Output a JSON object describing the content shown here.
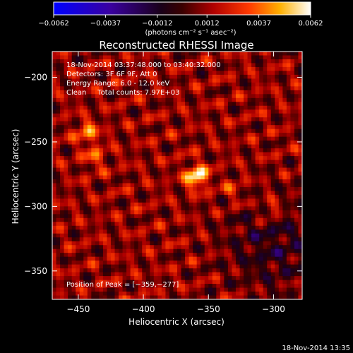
{
  "chart_data": {
    "type": "heatmap",
    "title": "Reconstructed RHESSI Image",
    "xlabel": "Heliocentric X (arcsec)",
    "ylabel": "Heliocentric Y (arcsec)",
    "xlim": [
      -470,
      -278
    ],
    "ylim": [
      -372,
      -180
    ],
    "x_ticks": [
      -450,
      -400,
      -350,
      -300
    ],
    "y_ticks": [
      -200,
      -250,
      -300,
      -350
    ],
    "x_tick_labels": [
      "−450",
      "−400",
      "−350",
      "−300"
    ],
    "y_tick_labels": [
      "−200",
      "−250",
      "−300",
      "−350"
    ],
    "grid": false,
    "colorbar": {
      "min": -0.0062,
      "max": 0.0062,
      "ticks": [
        -0.0062,
        -0.0037,
        -0.0012,
        0.0012,
        0.0037,
        0.0062
      ],
      "tick_labels": [
        "−0.0062",
        "−0.0037",
        "−0.0012",
        "0.0012",
        "0.0037",
        "0.0062"
      ],
      "unit_label": "(photons cm⁻² s⁻¹ asec⁻²)"
    },
    "annotations": [
      "18-Nov-2014 03:37:48.000 to 03:40:32.000",
      "Detectors: 3F 6F 9F, Att 0",
      "Energy Range: 6.0 - 12.0 keV",
      "Clean     Total counts: 7.97E+03"
    ],
    "peak": {
      "x": -359,
      "y": -277
    },
    "peak_label": "Position of Peak = [−359,−277]",
    "bright_sources": [
      {
        "x": -359,
        "y": -277,
        "value": 0.0062
      },
      {
        "x": -443,
        "y": -243,
        "value": 0.004
      },
      {
        "x": -437,
        "y": -262,
        "value": 0.003
      },
      {
        "x": -302,
        "y": -302,
        "value": 0.0032
      },
      {
        "x": -331,
        "y": -288,
        "value": 0.0025
      }
    ]
  },
  "footer": {
    "timestamp": "18-Nov-2014 13:35"
  }
}
